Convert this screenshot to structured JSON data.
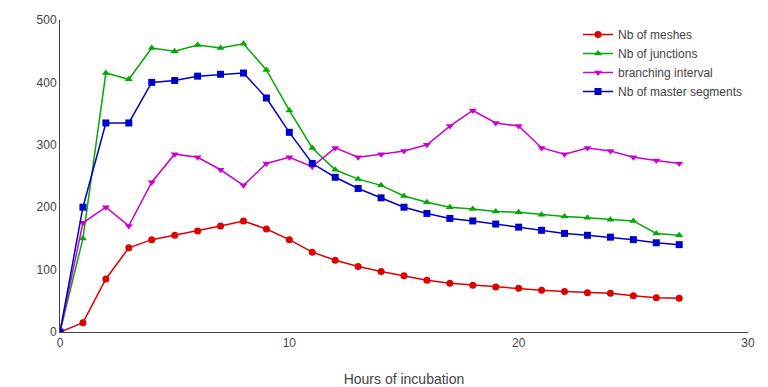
{
  "chart_data": {
    "type": "line",
    "x_label": "Hours of incubation",
    "x": [
      0,
      1,
      2,
      3,
      4,
      5,
      6,
      7,
      8,
      9,
      10,
      11,
      12,
      13,
      14,
      15,
      16,
      17,
      18,
      19,
      20,
      21,
      22,
      23,
      24,
      25,
      26,
      27
    ],
    "series": [
      {
        "name": "Nb of meshes",
        "color": "#dd0000",
        "marker": "circle",
        "line_style": "solid",
        "values": [
          0,
          15,
          85,
          135,
          148,
          155,
          162,
          170,
          178,
          165,
          148,
          128,
          115,
          105,
          97,
          90,
          83,
          78,
          75,
          72,
          70,
          67,
          65,
          63,
          62,
          58,
          55,
          54
        ]
      },
      {
        "name": "Nb of junctions",
        "color": "#00aa00",
        "marker": "triangle-up",
        "line_style": "solid",
        "values": [
          0,
          150,
          415,
          405,
          455,
          450,
          460,
          455,
          462,
          420,
          355,
          295,
          260,
          245,
          235,
          218,
          208,
          200,
          197,
          193,
          192,
          188,
          185,
          183,
          180,
          178,
          158,
          155
        ]
      },
      {
        "name": "branching interval",
        "color": "#cc00cc",
        "marker": "triangle-down",
        "line_style": "solid",
        "values": [
          0,
          175,
          200,
          170,
          240,
          285,
          280,
          260,
          235,
          270,
          280,
          265,
          295,
          280,
          285,
          290,
          300,
          330,
          355,
          335,
          330,
          295,
          285,
          295,
          290,
          280,
          275,
          270
        ]
      },
      {
        "name": "Nb of master segments",
        "color": "#0000cc",
        "marker": "square",
        "line_style": "solid",
        "values": [
          0,
          200,
          335,
          335,
          400,
          403,
          410,
          413,
          415,
          375,
          320,
          270,
          248,
          230,
          215,
          200,
          190,
          182,
          178,
          173,
          168,
          163,
          158,
          155,
          152,
          148,
          143,
          140
        ]
      }
    ],
    "xlim": [
      0,
      30
    ],
    "xticks": [
      0,
      10,
      20,
      30
    ],
    "ylim": [
      0,
      500
    ],
    "yticks": [
      0,
      100,
      200,
      300,
      400,
      500
    ],
    "grid": false,
    "legend": "upper right"
  }
}
